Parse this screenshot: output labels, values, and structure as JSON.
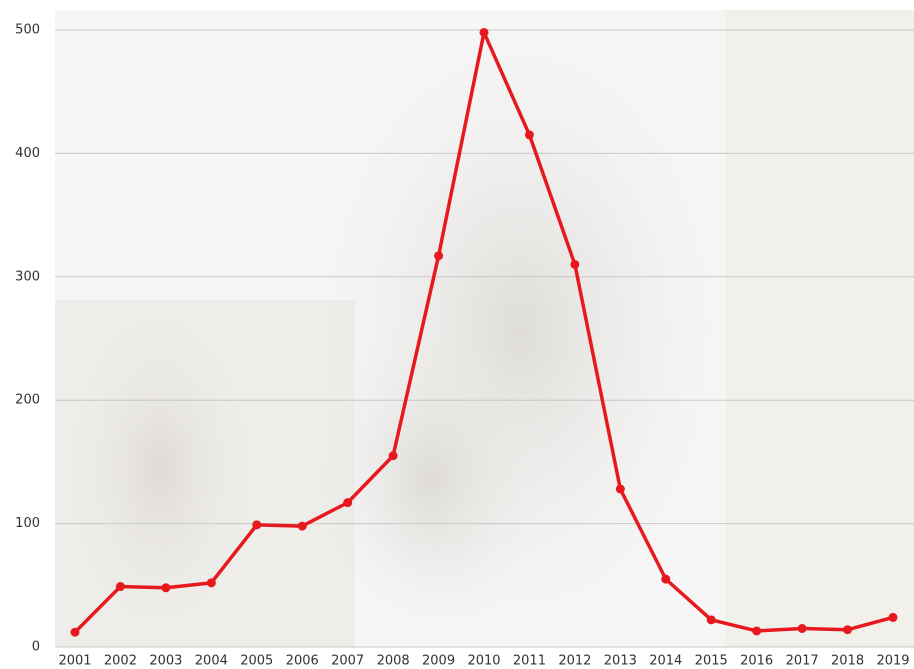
{
  "chart_data": {
    "type": "line",
    "categories": [
      "2001",
      "2002",
      "2003",
      "2004",
      "2005",
      "2006",
      "2007",
      "2008",
      "2009",
      "2010",
      "2011",
      "2012",
      "2013",
      "2014",
      "2015",
      "2016",
      "2017",
      "2018",
      "2019"
    ],
    "series": [
      {
        "color": "#e8191e",
        "values": [
          12,
          49,
          48,
          52,
          99,
          98,
          117,
          155,
          317,
          498,
          415,
          310,
          128,
          55,
          22,
          13,
          15,
          14,
          24
        ]
      }
    ],
    "ylim": [
      0,
      500
    ],
    "yticks": [
      0,
      100,
      200,
      300,
      400,
      500
    ],
    "grid": true
  }
}
